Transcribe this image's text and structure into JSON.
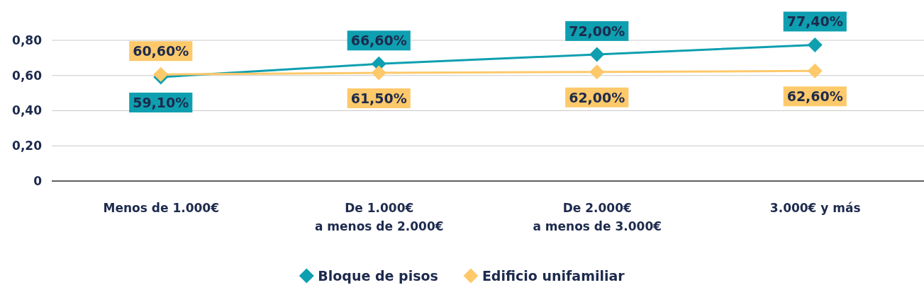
{
  "chart_data": {
    "type": "line",
    "categories": [
      "Menos de 1.000€",
      "De 1.000€\na menos de 2.000€",
      "De 2.000€\na menos de 3.000€",
      "3.000€ y más"
    ],
    "series": [
      {
        "name": "Bloque de pisos",
        "color": "#0e9fb0",
        "values": [
          0.591,
          0.666,
          0.72,
          0.774
        ],
        "value_labels": [
          "59,10%",
          "66,60%",
          "72,00%",
          "77,40%"
        ]
      },
      {
        "name": "Edificio unifamiliar",
        "color": "#fdc96a",
        "values": [
          0.606,
          0.615,
          0.62,
          0.626
        ],
        "value_labels": [
          "60,60%",
          "61,50%",
          "62,00%",
          "62,60%"
        ]
      }
    ],
    "ylim": [
      0,
      0.8
    ],
    "yticks": [
      {
        "value": 0,
        "label": "0"
      },
      {
        "value": 0.2,
        "label": "0,20"
      },
      {
        "value": 0.4,
        "label": "0,40"
      },
      {
        "value": 0.6,
        "label": "0,60"
      },
      {
        "value": 0.8,
        "label": "0,80"
      }
    ],
    "grid": "y",
    "marker": "diamond",
    "line_style": "solid",
    "legend": "bottom"
  }
}
